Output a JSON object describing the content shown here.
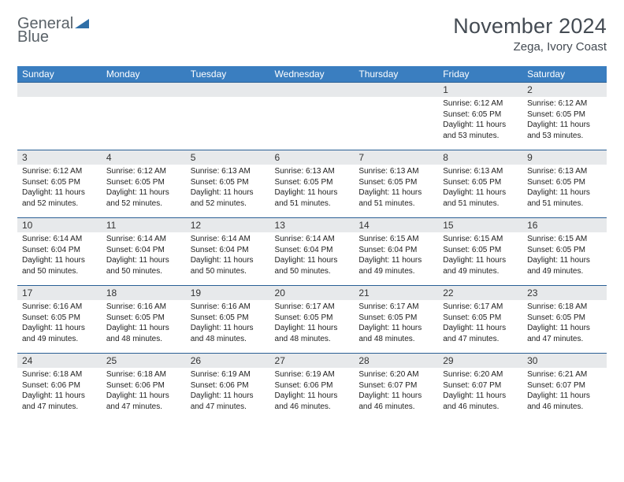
{
  "logo": {
    "word1": "General",
    "word2": "Blue"
  },
  "title": "November 2024",
  "location": "Zega, Ivory Coast",
  "colors": {
    "header_bg": "#3a7ec0",
    "header_text": "#ffffff",
    "row_border": "#2a5f95",
    "daybar_bg": "#e7e9eb",
    "body_text": "#333333",
    "logo_gray": "#5a6268",
    "logo_blue": "#2f6fa7"
  },
  "weekdays": [
    "Sunday",
    "Monday",
    "Tuesday",
    "Wednesday",
    "Thursday",
    "Friday",
    "Saturday"
  ],
  "weeks": [
    [
      null,
      null,
      null,
      null,
      null,
      {
        "n": "1",
        "sunrise": "6:12 AM",
        "sunset": "6:05 PM",
        "day_h": "11",
        "day_m": "53"
      },
      {
        "n": "2",
        "sunrise": "6:12 AM",
        "sunset": "6:05 PM",
        "day_h": "11",
        "day_m": "53"
      }
    ],
    [
      {
        "n": "3",
        "sunrise": "6:12 AM",
        "sunset": "6:05 PM",
        "day_h": "11",
        "day_m": "52"
      },
      {
        "n": "4",
        "sunrise": "6:12 AM",
        "sunset": "6:05 PM",
        "day_h": "11",
        "day_m": "52"
      },
      {
        "n": "5",
        "sunrise": "6:13 AM",
        "sunset": "6:05 PM",
        "day_h": "11",
        "day_m": "52"
      },
      {
        "n": "6",
        "sunrise": "6:13 AM",
        "sunset": "6:05 PM",
        "day_h": "11",
        "day_m": "51"
      },
      {
        "n": "7",
        "sunrise": "6:13 AM",
        "sunset": "6:05 PM",
        "day_h": "11",
        "day_m": "51"
      },
      {
        "n": "8",
        "sunrise": "6:13 AM",
        "sunset": "6:05 PM",
        "day_h": "11",
        "day_m": "51"
      },
      {
        "n": "9",
        "sunrise": "6:13 AM",
        "sunset": "6:05 PM",
        "day_h": "11",
        "day_m": "51"
      }
    ],
    [
      {
        "n": "10",
        "sunrise": "6:14 AM",
        "sunset": "6:04 PM",
        "day_h": "11",
        "day_m": "50"
      },
      {
        "n": "11",
        "sunrise": "6:14 AM",
        "sunset": "6:04 PM",
        "day_h": "11",
        "day_m": "50"
      },
      {
        "n": "12",
        "sunrise": "6:14 AM",
        "sunset": "6:04 PM",
        "day_h": "11",
        "day_m": "50"
      },
      {
        "n": "13",
        "sunrise": "6:14 AM",
        "sunset": "6:04 PM",
        "day_h": "11",
        "day_m": "50"
      },
      {
        "n": "14",
        "sunrise": "6:15 AM",
        "sunset": "6:04 PM",
        "day_h": "11",
        "day_m": "49"
      },
      {
        "n": "15",
        "sunrise": "6:15 AM",
        "sunset": "6:05 PM",
        "day_h": "11",
        "day_m": "49"
      },
      {
        "n": "16",
        "sunrise": "6:15 AM",
        "sunset": "6:05 PM",
        "day_h": "11",
        "day_m": "49"
      }
    ],
    [
      {
        "n": "17",
        "sunrise": "6:16 AM",
        "sunset": "6:05 PM",
        "day_h": "11",
        "day_m": "49"
      },
      {
        "n": "18",
        "sunrise": "6:16 AM",
        "sunset": "6:05 PM",
        "day_h": "11",
        "day_m": "48"
      },
      {
        "n": "19",
        "sunrise": "6:16 AM",
        "sunset": "6:05 PM",
        "day_h": "11",
        "day_m": "48"
      },
      {
        "n": "20",
        "sunrise": "6:17 AM",
        "sunset": "6:05 PM",
        "day_h": "11",
        "day_m": "48"
      },
      {
        "n": "21",
        "sunrise": "6:17 AM",
        "sunset": "6:05 PM",
        "day_h": "11",
        "day_m": "48"
      },
      {
        "n": "22",
        "sunrise": "6:17 AM",
        "sunset": "6:05 PM",
        "day_h": "11",
        "day_m": "47"
      },
      {
        "n": "23",
        "sunrise": "6:18 AM",
        "sunset": "6:05 PM",
        "day_h": "11",
        "day_m": "47"
      }
    ],
    [
      {
        "n": "24",
        "sunrise": "6:18 AM",
        "sunset": "6:06 PM",
        "day_h": "11",
        "day_m": "47"
      },
      {
        "n": "25",
        "sunrise": "6:18 AM",
        "sunset": "6:06 PM",
        "day_h": "11",
        "day_m": "47"
      },
      {
        "n": "26",
        "sunrise": "6:19 AM",
        "sunset": "6:06 PM",
        "day_h": "11",
        "day_m": "47"
      },
      {
        "n": "27",
        "sunrise": "6:19 AM",
        "sunset": "6:06 PM",
        "day_h": "11",
        "day_m": "46"
      },
      {
        "n": "28",
        "sunrise": "6:20 AM",
        "sunset": "6:07 PM",
        "day_h": "11",
        "day_m": "46"
      },
      {
        "n": "29",
        "sunrise": "6:20 AM",
        "sunset": "6:07 PM",
        "day_h": "11",
        "day_m": "46"
      },
      {
        "n": "30",
        "sunrise": "6:21 AM",
        "sunset": "6:07 PM",
        "day_h": "11",
        "day_m": "46"
      }
    ]
  ],
  "labels": {
    "sunrise": "Sunrise: ",
    "sunset": "Sunset: ",
    "daylight_prefix": "Daylight: ",
    "hours_word": " hours",
    "and_word": "and ",
    "minutes_word": " minutes."
  }
}
